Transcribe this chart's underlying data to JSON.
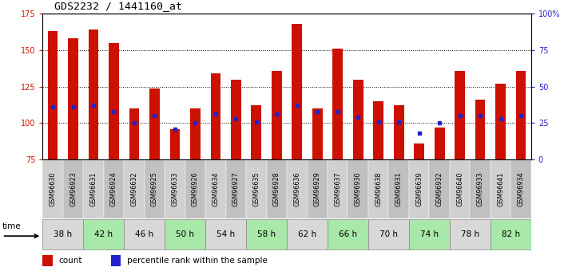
{
  "title": "GDS2232 / 1441160_at",
  "samples": [
    "GSM96630",
    "GSM96923",
    "GSM96631",
    "GSM96924",
    "GSM96632",
    "GSM96925",
    "GSM96633",
    "GSM96926",
    "GSM96634",
    "GSM96927",
    "GSM96635",
    "GSM96928",
    "GSM96636",
    "GSM96929",
    "GSM96637",
    "GSM96930",
    "GSM96638",
    "GSM96931",
    "GSM96639",
    "GSM96932",
    "GSM96640",
    "GSM96933",
    "GSM96641",
    "GSM96934"
  ],
  "bar_tops": [
    163,
    158,
    164,
    155,
    110,
    124,
    96,
    110,
    134,
    130,
    112,
    136,
    168,
    110,
    151,
    130,
    115,
    112,
    86,
    97,
    136,
    116,
    127,
    136
  ],
  "blue_vals": [
    111,
    111,
    112,
    108,
    100,
    105,
    96,
    100,
    106,
    103,
    101,
    106,
    112,
    108,
    108,
    104,
    101,
    101,
    93,
    100,
    105,
    105,
    103,
    105
  ],
  "bar_base": 75,
  "ylim_left": [
    75,
    175
  ],
  "ylim_right": [
    0,
    100
  ],
  "yticks_left": [
    75,
    100,
    125,
    150,
    175
  ],
  "yticks_right": [
    0,
    25,
    50,
    75,
    100
  ],
  "ytick_labels_right": [
    "0",
    "25",
    "50",
    "75",
    "100%"
  ],
  "time_groups": [
    {
      "label": "38 h",
      "color": "#d8d8d8"
    },
    {
      "label": "42 h",
      "color": "#a8e8a8"
    },
    {
      "label": "46 h",
      "color": "#d8d8d8"
    },
    {
      "label": "50 h",
      "color": "#a8e8a8"
    },
    {
      "label": "54 h",
      "color": "#d8d8d8"
    },
    {
      "label": "58 h",
      "color": "#a8e8a8"
    },
    {
      "label": "62 h",
      "color": "#d8d8d8"
    },
    {
      "label": "66 h",
      "color": "#a8e8a8"
    },
    {
      "label": "70 h",
      "color": "#d8d8d8"
    },
    {
      "label": "74 h",
      "color": "#a8e8a8"
    },
    {
      "label": "78 h",
      "color": "#d8d8d8"
    },
    {
      "label": "82 h",
      "color": "#a8e8a8"
    }
  ],
  "sample_col_colors": [
    "#d0d0d0",
    "#c0c0c0"
  ],
  "bar_color": "#cc1100",
  "blue_color": "#2222cc",
  "left_tick_color": "#cc1100",
  "right_tick_color": "#2222cc",
  "legend_count_label": "count",
  "legend_pct_label": "percentile rank within the sample",
  "time_label": "time",
  "grid_dotted_at": [
    100,
    125,
    150
  ],
  "bar_width": 0.5
}
